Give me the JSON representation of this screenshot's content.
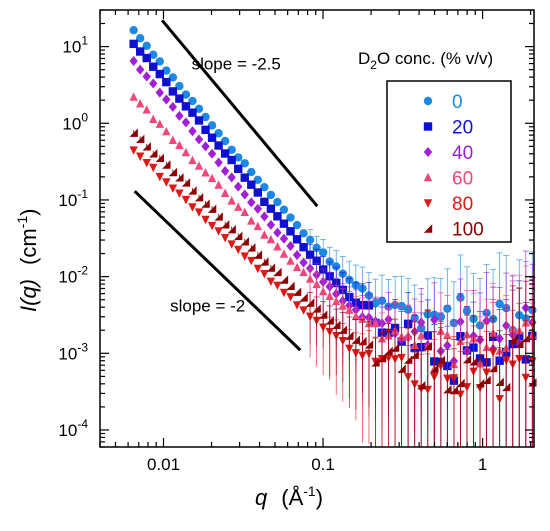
{
  "chart_data": {
    "type": "scatter",
    "xscale": "log",
    "yscale": "log",
    "xlim": [
      0.004,
      2.1
    ],
    "ylim": [
      6e-05,
      30
    ],
    "xticks": [
      {
        "value": 0.01,
        "label": "0.01"
      },
      {
        "value": 0.1,
        "label": "0.1"
      },
      {
        "value": 1,
        "label": "1"
      }
    ],
    "yticks": [
      {
        "value": 0.0001,
        "base": "10",
        "exp": "-4"
      },
      {
        "value": 0.001,
        "base": "10",
        "exp": "-3"
      },
      {
        "value": 0.01,
        "base": "10",
        "exp": "-2"
      },
      {
        "value": 0.1,
        "base": "10",
        "exp": "-1"
      },
      {
        "value": 1,
        "base": "10",
        "exp": "0"
      },
      {
        "value": 10,
        "base": "10",
        "exp": "1"
      }
    ],
    "xlabel": {
      "symbol": "q",
      "unit_open": "(Å",
      "unit_exp": "-1",
      "unit_close": ")"
    },
    "ylabel": {
      "symbol": "I(q)",
      "unit_open": "(cm",
      "unit_exp": "-1",
      "unit_close": ")"
    },
    "legend": {
      "title": {
        "pre": "D",
        "sub": "2",
        "post": "O conc. (% v/v)"
      },
      "placement": "right"
    },
    "annotations": [
      {
        "text": "slope = -2.5",
        "x": 0.015,
        "y": 5.0
      },
      {
        "text": "slope = -2",
        "x": 0.011,
        "y": 0.0035
      }
    ],
    "guide_lines": [
      {
        "name": "slope-2.5",
        "x1": 0.0098,
        "y1": 22,
        "x2": 0.092,
        "y2": 0.083
      },
      {
        "name": "slope-2",
        "x1": 0.0066,
        "y1": 0.13,
        "x2": 0.072,
        "y2": 0.0011
      }
    ],
    "series": [
      {
        "name": "0",
        "color": "#1e88e5",
        "marker": "circle",
        "x0": 0.0065,
        "y0": 16,
        "slope": -2.5,
        "qc": 0.13,
        "plateau": 0.0025,
        "noise": 0.25
      },
      {
        "name": "20",
        "color": "#1010d0",
        "marker": "square",
        "x0": 0.0065,
        "y0": 11,
        "slope": -2.5,
        "qc": 0.12,
        "plateau": 0.0009,
        "noise": 0.35
      },
      {
        "name": "40",
        "color": "#a020d8",
        "marker": "diamond",
        "x0": 0.0065,
        "y0": 6.5,
        "slope": -2.5,
        "qc": 0.12,
        "plateau": 0.0016,
        "noise": 0.3
      },
      {
        "name": "60",
        "color": "#f04878",
        "marker": "triangle-up",
        "x0": 0.0065,
        "y0": 2.2,
        "slope": -2.2,
        "qc": 0.12,
        "plateau": 0.0012,
        "noise": 0.3
      },
      {
        "name": "80",
        "color": "#e01818",
        "marker": "triangle-down",
        "x0": 0.0065,
        "y0": 0.45,
        "slope": -2.0,
        "qc": 0.12,
        "plateau": 0.0004,
        "noise": 0.4
      },
      {
        "name": "100",
        "color": "#8b0000",
        "marker": "triangle-half",
        "x0": 0.0065,
        "y0": 0.75,
        "slope": -2.05,
        "qc": 0.13,
        "plateau": 0.0005,
        "noise": 0.4
      }
    ]
  }
}
